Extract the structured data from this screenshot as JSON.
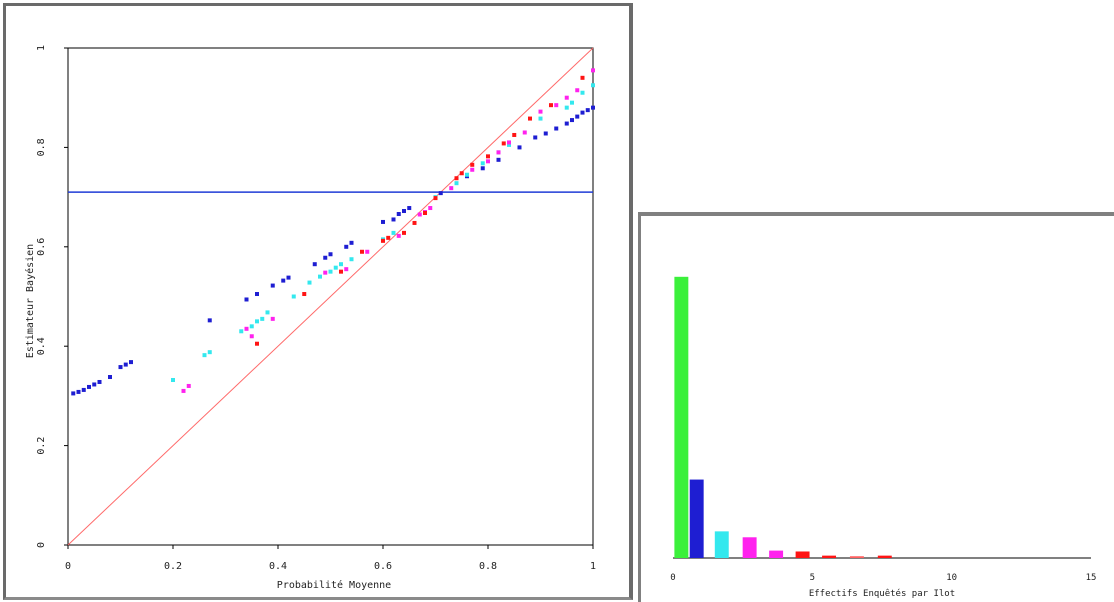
{
  "chart_data": [
    {
      "type": "scatter",
      "title": "",
      "xlabel": "Probabilité Moyenne",
      "ylabel": "Estimateur Bayésien",
      "xlim": [
        0,
        1
      ],
      "ylim": [
        0,
        1
      ],
      "xticks": [
        "0",
        "0.2",
        "0.4",
        "0.6",
        "0.8",
        "1"
      ],
      "yticks": [
        "0",
        "0.2",
        "0.4",
        "0.6",
        "0.8",
        "1"
      ],
      "grid": false,
      "reference_lines": [
        {
          "kind": "diagonal",
          "from": [
            0,
            0
          ],
          "to": [
            1,
            1
          ],
          "color": "#ff6a6a"
        },
        {
          "kind": "horizontal",
          "y": 0.71,
          "color": "#1f3bd6"
        }
      ],
      "series": [
        {
          "color": "#1e1ed2",
          "points": [
            [
              0.01,
              0.305
            ],
            [
              0.02,
              0.308
            ],
            [
              0.03,
              0.312
            ],
            [
              0.04,
              0.318
            ],
            [
              0.05,
              0.323
            ],
            [
              0.06,
              0.328
            ],
            [
              0.08,
              0.338
            ],
            [
              0.1,
              0.358
            ],
            [
              0.11,
              0.363
            ],
            [
              0.12,
              0.368
            ],
            [
              0.27,
              0.452
            ],
            [
              0.34,
              0.494
            ],
            [
              0.36,
              0.505
            ],
            [
              0.39,
              0.522
            ],
            [
              0.41,
              0.532
            ],
            [
              0.42,
              0.538
            ],
            [
              0.47,
              0.565
            ],
            [
              0.49,
              0.578
            ],
            [
              0.5,
              0.585
            ],
            [
              0.53,
              0.6
            ],
            [
              0.54,
              0.608
            ],
            [
              0.6,
              0.65
            ],
            [
              0.62,
              0.655
            ],
            [
              0.63,
              0.666
            ],
            [
              0.64,
              0.672
            ],
            [
              0.65,
              0.678
            ],
            [
              0.71,
              0.708
            ],
            [
              0.76,
              0.742
            ],
            [
              0.79,
              0.758
            ],
            [
              0.82,
              0.775
            ],
            [
              0.86,
              0.8
            ],
            [
              0.89,
              0.82
            ],
            [
              0.91,
              0.828
            ],
            [
              0.93,
              0.838
            ],
            [
              0.95,
              0.848
            ],
            [
              0.96,
              0.855
            ],
            [
              0.97,
              0.862
            ],
            [
              0.98,
              0.87
            ],
            [
              0.99,
              0.875
            ],
            [
              1.0,
              0.88
            ]
          ]
        },
        {
          "color": "#33e8ee",
          "points": [
            [
              0.2,
              0.332
            ],
            [
              0.26,
              0.382
            ],
            [
              0.27,
              0.388
            ],
            [
              0.33,
              0.43
            ],
            [
              0.35,
              0.44
            ],
            [
              0.36,
              0.45
            ],
            [
              0.37,
              0.455
            ],
            [
              0.38,
              0.468
            ],
            [
              0.43,
              0.5
            ],
            [
              0.46,
              0.528
            ],
            [
              0.48,
              0.54
            ],
            [
              0.5,
              0.55
            ],
            [
              0.51,
              0.558
            ],
            [
              0.52,
              0.565
            ],
            [
              0.54,
              0.575
            ],
            [
              0.6,
              0.615
            ],
            [
              0.62,
              0.628
            ],
            [
              0.7,
              0.7
            ],
            [
              0.74,
              0.728
            ],
            [
              0.76,
              0.745
            ],
            [
              0.79,
              0.768
            ],
            [
              0.82,
              0.79
            ],
            [
              0.84,
              0.805
            ],
            [
              0.9,
              0.858
            ],
            [
              0.95,
              0.88
            ],
            [
              0.96,
              0.89
            ],
            [
              0.98,
              0.91
            ],
            [
              1.0,
              0.925
            ]
          ]
        },
        {
          "color": "#ff22ee",
          "points": [
            [
              0.22,
              0.31
            ],
            [
              0.23,
              0.32
            ],
            [
              0.34,
              0.435
            ],
            [
              0.35,
              0.42
            ],
            [
              0.39,
              0.455
            ],
            [
              0.49,
              0.548
            ],
            [
              0.53,
              0.555
            ],
            [
              0.57,
              0.59
            ],
            [
              0.63,
              0.622
            ],
            [
              0.67,
              0.665
            ],
            [
              0.68,
              0.67
            ],
            [
              0.69,
              0.678
            ],
            [
              0.73,
              0.718
            ],
            [
              0.77,
              0.755
            ],
            [
              0.8,
              0.772
            ],
            [
              0.82,
              0.79
            ],
            [
              0.84,
              0.81
            ],
            [
              0.87,
              0.83
            ],
            [
              0.9,
              0.872
            ],
            [
              0.93,
              0.885
            ],
            [
              0.95,
              0.9
            ],
            [
              0.97,
              0.915
            ],
            [
              1.0,
              0.955
            ]
          ]
        },
        {
          "color": "#ff1414",
          "points": [
            [
              0.36,
              0.405
            ],
            [
              0.45,
              0.505
            ],
            [
              0.52,
              0.55
            ],
            [
              0.56,
              0.59
            ],
            [
              0.6,
              0.612
            ],
            [
              0.61,
              0.618
            ],
            [
              0.64,
              0.628
            ],
            [
              0.66,
              0.648
            ],
            [
              0.68,
              0.668
            ],
            [
              0.7,
              0.698
            ],
            [
              0.74,
              0.738
            ],
            [
              0.75,
              0.748
            ],
            [
              0.77,
              0.765
            ],
            [
              0.8,
              0.782
            ],
            [
              0.83,
              0.808
            ],
            [
              0.85,
              0.825
            ],
            [
              0.88,
              0.858
            ],
            [
              0.92,
              0.885
            ],
            [
              0.98,
              0.94
            ]
          ]
        }
      ]
    },
    {
      "type": "bar",
      "title": "",
      "xlabel": "Effectifs Enquêtés par Ilot",
      "ylabel": "",
      "xlim": [
        0,
        15
      ],
      "ylim": [
        0,
        1
      ],
      "xticks": [
        "0",
        "5",
        "10",
        "15"
      ],
      "bars": [
        {
          "x": 0.3,
          "value": 0.95,
          "color": "#3bf03b"
        },
        {
          "x": 0.85,
          "value": 0.265,
          "color": "#1e1ed2"
        },
        {
          "x": 1.75,
          "value": 0.09,
          "color": "#33e8ee"
        },
        {
          "x": 2.75,
          "value": 0.07,
          "color": "#ff22ee"
        },
        {
          "x": 3.7,
          "value": 0.025,
          "color": "#ff22ee"
        },
        {
          "x": 4.65,
          "value": 0.022,
          "color": "#ff1414"
        },
        {
          "x": 5.6,
          "value": 0.008,
          "color": "#ff1414"
        },
        {
          "x": 6.6,
          "value": 0.006,
          "color": "#ff6060"
        },
        {
          "x": 7.6,
          "value": 0.008,
          "color": "#ff1414"
        }
      ]
    }
  ]
}
